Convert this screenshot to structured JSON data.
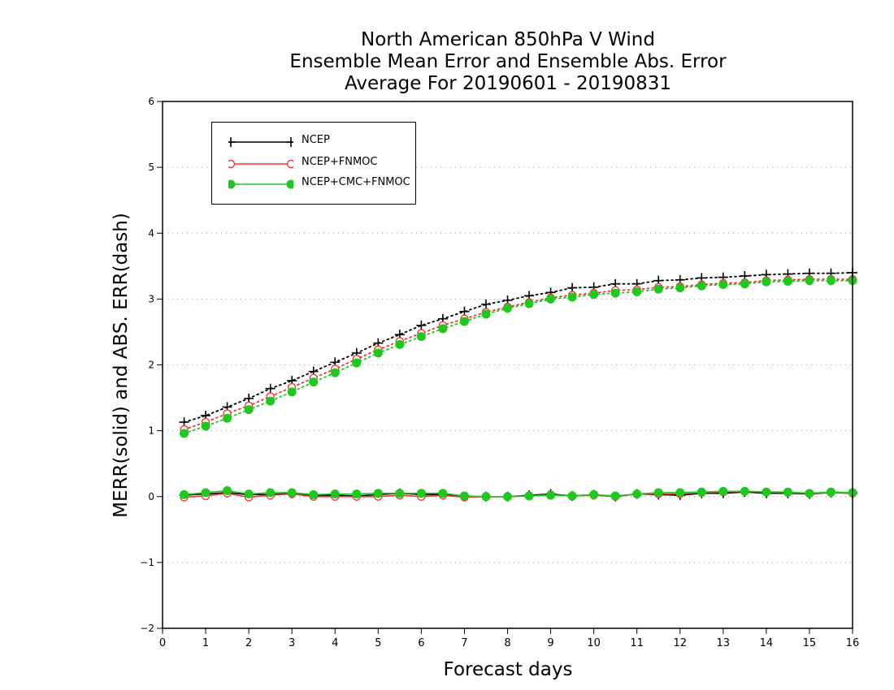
{
  "title": {
    "line1": "North American 850hPa V Wind",
    "line2": "Ensemble Mean Error and Ensemble Abs. Error",
    "line3": "Average For 20190601 - 20190831"
  },
  "colors": {
    "NCEP": "#000000",
    "NCEP+FNMOC": "#e83a3a",
    "NCEP+CMC+FNMOC": "#1ec81e"
  },
  "legend": {
    "items": [
      {
        "label": "NCEP",
        "marker": "plus"
      },
      {
        "label": "NCEP+FNMOC",
        "marker": "open-circle"
      },
      {
        "label": "NCEP+CMC+FNMOC",
        "marker": "filled-circle"
      }
    ],
    "position": "top-left"
  },
  "chart_data": {
    "type": "line",
    "xlabel": "Forecast days",
    "ylabel": "MERR(solid) and ABS. ERR(dash)",
    "xlim": [
      0,
      16
    ],
    "ylim": [
      -2,
      6
    ],
    "xticks": [
      0,
      1,
      2,
      3,
      4,
      5,
      6,
      7,
      8,
      9,
      10,
      11,
      12,
      13,
      14,
      15,
      16
    ],
    "yticks": [
      -2,
      -1,
      0,
      1,
      2,
      3,
      4,
      5,
      6
    ],
    "grid": "horizontal dotted",
    "x": [
      0.5,
      1,
      1.5,
      2,
      2.5,
      3,
      3.5,
      4,
      4.5,
      5,
      5.5,
      6,
      6.5,
      7,
      7.5,
      8,
      8.5,
      9,
      9.5,
      10,
      10.5,
      11,
      11.5,
      12,
      12.5,
      13,
      13.5,
      14,
      14.5,
      15,
      15.5,
      16
    ],
    "series": [
      {
        "name": "NCEP",
        "merr": [
          0.02,
          0.04,
          0.06,
          0.03,
          0.03,
          0.05,
          0.02,
          0.02,
          0.01,
          0.03,
          0.05,
          0.03,
          0.03,
          0.0,
          0.0,
          0.0,
          0.02,
          0.04,
          0.01,
          0.03,
          0.0,
          0.04,
          0.03,
          0.02,
          0.05,
          0.05,
          0.07,
          0.05,
          0.05,
          0.04,
          0.06,
          0.05
        ],
        "abs_err": [
          1.13,
          1.23,
          1.36,
          1.49,
          1.64,
          1.76,
          1.9,
          2.04,
          2.18,
          2.33,
          2.46,
          2.6,
          2.7,
          2.81,
          2.92,
          2.98,
          3.05,
          3.1,
          3.17,
          3.18,
          3.23,
          3.23,
          3.28,
          3.29,
          3.32,
          3.33,
          3.35,
          3.37,
          3.38,
          3.39,
          3.39,
          3.4
        ]
      },
      {
        "name": "NCEP+FNMOC",
        "merr": [
          -0.01,
          0.01,
          0.05,
          -0.01,
          0.02,
          0.04,
          0.0,
          0.0,
          0.0,
          0.0,
          0.02,
          0.0,
          0.02,
          -0.01,
          0.0,
          0.0,
          0.01,
          0.03,
          0.01,
          0.02,
          0.0,
          0.04,
          0.04,
          0.04,
          0.06,
          0.07,
          0.08,
          0.07,
          0.06,
          0.05,
          0.06,
          0.05
        ],
        "abs_err": [
          1.02,
          1.13,
          1.26,
          1.38,
          1.52,
          1.66,
          1.8,
          1.94,
          2.09,
          2.23,
          2.36,
          2.48,
          2.6,
          2.7,
          2.8,
          2.88,
          2.95,
          3.02,
          3.06,
          3.09,
          3.13,
          3.14,
          3.18,
          3.19,
          3.22,
          3.24,
          3.25,
          3.28,
          3.29,
          3.3,
          3.3,
          3.3
        ]
      },
      {
        "name": "NCEP+CMC+FNMOC",
        "merr": [
          0.03,
          0.06,
          0.09,
          0.04,
          0.06,
          0.06,
          0.03,
          0.04,
          0.04,
          0.05,
          0.05,
          0.05,
          0.05,
          0.01,
          0.0,
          0.0,
          0.01,
          0.02,
          0.01,
          0.03,
          0.01,
          0.04,
          0.06,
          0.06,
          0.07,
          0.08,
          0.08,
          0.07,
          0.07,
          0.05,
          0.07,
          0.06
        ],
        "abs_err": [
          0.96,
          1.07,
          1.19,
          1.32,
          1.45,
          1.59,
          1.74,
          1.88,
          2.03,
          2.18,
          2.31,
          2.43,
          2.55,
          2.66,
          2.77,
          2.86,
          2.93,
          3.0,
          3.03,
          3.07,
          3.09,
          3.11,
          3.15,
          3.17,
          3.2,
          3.22,
          3.23,
          3.26,
          3.27,
          3.28,
          3.28,
          3.28
        ]
      }
    ]
  }
}
